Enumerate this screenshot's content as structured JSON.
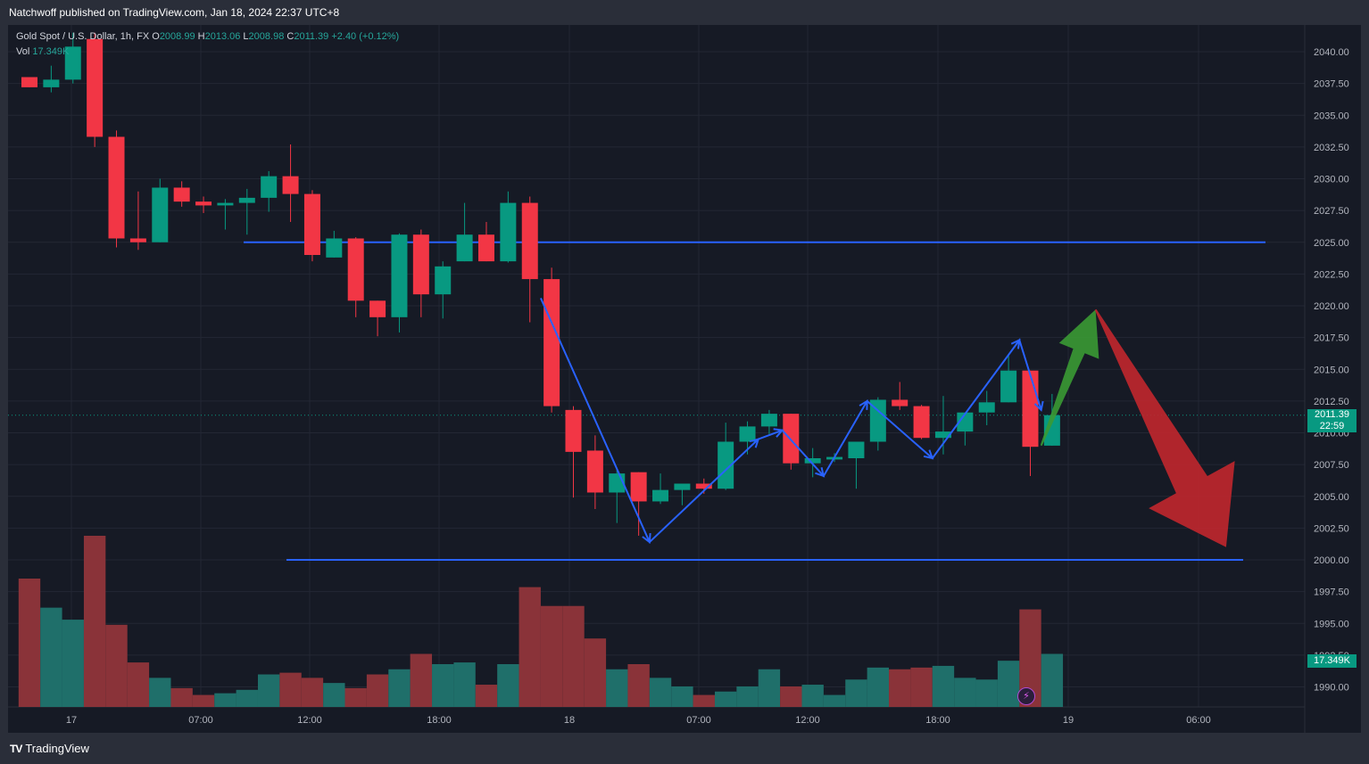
{
  "header": {
    "publisher": "Natchwoff published on TradingView.com, Jan 18, 2024 22:37 UTC+8"
  },
  "legend": {
    "symbol": "Gold Spot / U.S. Dollar, 1h, FX",
    "o_label": "O",
    "o_value": "2008.99",
    "h_label": "H",
    "h_value": "2013.06",
    "l_label": "L",
    "l_value": "2008.98",
    "c_label": "C",
    "c_value": "2011.39",
    "change": "+2.40 (+0.12%)",
    "vol_label": "Vol",
    "vol_value": "17.349K"
  },
  "price_tag": {
    "price": "2011.39",
    "countdown": "22:59"
  },
  "volume_tag": "17.349K",
  "footer": {
    "logo_mark": "TV",
    "logo_text": "TradingView"
  },
  "colors": {
    "up": "#089981",
    "down": "#f23645",
    "up_volume": "#1f6f6a",
    "down_volume": "#8a3339",
    "line": "#2962ff",
    "green_arrow": "#3a9a34",
    "red_arrow": "#c1272d"
  },
  "chart_data": {
    "type": "candlestick",
    "symbol": "Gold Spot / U.S. Dollar",
    "interval": "1h",
    "x_tick_labels": [
      "17",
      "07:00",
      "12:00",
      "18:00",
      "18",
      "07:00",
      "12:00",
      "18:00",
      "19",
      "06:00"
    ],
    "y_ticks": [
      "1990.00",
      "1992.50",
      "1995.00",
      "1997.50",
      "2000.00",
      "2002.50",
      "2005.00",
      "2007.50",
      "2010.00",
      "2012.50",
      "2015.00",
      "2017.50",
      "2020.00",
      "2022.50",
      "2025.00",
      "2027.50",
      "2030.00",
      "2032.50",
      "2035.00",
      "2037.50",
      "2040.00"
    ],
    "y_range": [
      1988.2,
      2041.5
    ],
    "grid": true,
    "candles": [
      {
        "o": 2038.0,
        "h": 2038.0,
        "l": 2037.2,
        "c": 2037.2,
        "v": 0.75
      },
      {
        "o": 2037.2,
        "h": 2038.9,
        "l": 2036.8,
        "c": 2037.8,
        "v": 0.58
      },
      {
        "o": 2037.8,
        "h": 2041.5,
        "l": 2037.5,
        "c": 2040.4,
        "v": 0.51
      },
      {
        "o": 2041.0,
        "h": 2041.5,
        "l": 2032.5,
        "c": 2033.3,
        "v": 1.0
      },
      {
        "o": 2033.3,
        "h": 2033.8,
        "l": 2024.6,
        "c": 2025.3,
        "v": 0.48
      },
      {
        "o": 2025.3,
        "h": 2029.0,
        "l": 2024.4,
        "c": 2025.0,
        "v": 0.26
      },
      {
        "o": 2025.0,
        "h": 2030.0,
        "l": 2025.0,
        "c": 2029.3,
        "v": 0.17
      },
      {
        "o": 2029.3,
        "h": 2029.8,
        "l": 2027.8,
        "c": 2028.2,
        "v": 0.11
      },
      {
        "o": 2028.2,
        "h": 2028.6,
        "l": 2027.3,
        "c": 2027.9,
        "v": 0.07
      },
      {
        "o": 2027.9,
        "h": 2028.4,
        "l": 2026.0,
        "c": 2028.1,
        "v": 0.08
      },
      {
        "o": 2028.1,
        "h": 2029.2,
        "l": 2025.6,
        "c": 2028.5,
        "v": 0.1
      },
      {
        "o": 2028.5,
        "h": 2030.6,
        "l": 2027.4,
        "c": 2030.2,
        "v": 0.19
      },
      {
        "o": 2030.2,
        "h": 2032.7,
        "l": 2026.6,
        "c": 2028.8,
        "v": 0.2
      },
      {
        "o": 2028.8,
        "h": 2029.1,
        "l": 2023.5,
        "c": 2024.0,
        "v": 0.17
      },
      {
        "o": 2023.8,
        "h": 2025.9,
        "l": 2023.8,
        "c": 2025.3,
        "v": 0.14
      },
      {
        "o": 2025.3,
        "h": 2025.4,
        "l": 2019.1,
        "c": 2020.4,
        "v": 0.11
      },
      {
        "o": 2020.4,
        "h": 2020.4,
        "l": 2017.6,
        "c": 2019.1,
        "v": 0.19
      },
      {
        "o": 2019.1,
        "h": 2025.7,
        "l": 2017.9,
        "c": 2025.6,
        "v": 0.22
      },
      {
        "o": 2025.6,
        "h": 2026.0,
        "l": 2019.1,
        "c": 2020.9,
        "v": 0.31
      },
      {
        "o": 2020.9,
        "h": 2023.5,
        "l": 2019.0,
        "c": 2023.1,
        "v": 0.25
      },
      {
        "o": 2023.5,
        "h": 2028.1,
        "l": 2023.5,
        "c": 2025.6,
        "v": 0.26
      },
      {
        "o": 2025.6,
        "h": 2026.6,
        "l": 2023.5,
        "c": 2023.5,
        "v": 0.13
      },
      {
        "o": 2023.5,
        "h": 2029.0,
        "l": 2023.4,
        "c": 2028.1,
        "v": 0.25
      },
      {
        "o": 2028.1,
        "h": 2028.6,
        "l": 2018.7,
        "c": 2022.1,
        "v": 0.7
      },
      {
        "o": 2022.1,
        "h": 2023.0,
        "l": 2011.6,
        "c": 2012.1,
        "v": 0.59
      },
      {
        "o": 2011.8,
        "h": 2012.1,
        "l": 2004.9,
        "c": 2008.5,
        "v": 0.59
      },
      {
        "o": 2008.6,
        "h": 2009.8,
        "l": 2004.0,
        "c": 2005.3,
        "v": 0.4
      },
      {
        "o": 2005.3,
        "h": 2007.1,
        "l": 2002.9,
        "c": 2006.8,
        "v": 0.22
      },
      {
        "o": 2006.9,
        "h": 2006.9,
        "l": 2001.9,
        "c": 2004.6,
        "v": 0.25
      },
      {
        "o": 2004.6,
        "h": 2006.8,
        "l": 2004.4,
        "c": 2005.5,
        "v": 0.17
      },
      {
        "o": 2005.5,
        "h": 2006.0,
        "l": 2004.3,
        "c": 2006.0,
        "v": 0.12
      },
      {
        "o": 2006.0,
        "h": 2006.4,
        "l": 2005.2,
        "c": 2005.6,
        "v": 0.07
      },
      {
        "o": 2005.6,
        "h": 2010.8,
        "l": 2005.5,
        "c": 2009.3,
        "v": 0.09
      },
      {
        "o": 2009.3,
        "h": 2010.9,
        "l": 2008.3,
        "c": 2010.5,
        "v": 0.12
      },
      {
        "o": 2010.5,
        "h": 2011.8,
        "l": 2009.9,
        "c": 2011.5,
        "v": 0.22
      },
      {
        "o": 2011.5,
        "h": 2011.5,
        "l": 2007.1,
        "c": 2007.6,
        "v": 0.12
      },
      {
        "o": 2007.6,
        "h": 2008.8,
        "l": 2006.5,
        "c": 2008.0,
        "v": 0.13
      },
      {
        "o": 2007.9,
        "h": 2008.4,
        "l": 2007.7,
        "c": 2008.1,
        "v": 0.07
      },
      {
        "o": 2008.0,
        "h": 2009.2,
        "l": 2005.6,
        "c": 2009.3,
        "v": 0.16
      },
      {
        "o": 2009.3,
        "h": 2012.8,
        "l": 2008.6,
        "c": 2012.6,
        "v": 0.23
      },
      {
        "o": 2012.6,
        "h": 2014.0,
        "l": 2011.8,
        "c": 2012.1,
        "v": 0.22
      },
      {
        "o": 2012.1,
        "h": 2012.2,
        "l": 2009.5,
        "c": 2009.6,
        "v": 0.23
      },
      {
        "o": 2009.6,
        "h": 2012.9,
        "l": 2008.3,
        "c": 2010.1,
        "v": 0.24
      },
      {
        "o": 2010.1,
        "h": 2011.5,
        "l": 2009.0,
        "c": 2011.6,
        "v": 0.17
      },
      {
        "o": 2011.6,
        "h": 2013.3,
        "l": 2010.6,
        "c": 2012.4,
        "v": 0.16
      },
      {
        "o": 2012.4,
        "h": 2016.2,
        "l": 2012.4,
        "c": 2014.9,
        "v": 0.27
      },
      {
        "o": 2014.9,
        "h": 2014.9,
        "l": 2006.6,
        "c": 2008.9,
        "v": 0.57
      },
      {
        "o": 2008.99,
        "h": 2013.06,
        "l": 2008.98,
        "c": 2011.39,
        "v": 0.31
      }
    ],
    "horizontal_lines": [
      2025.0,
      2000.0
    ],
    "zigzag": [
      [
        23.5,
        2020.6
      ],
      [
        28.5,
        2001.4
      ],
      [
        33.5,
        2009.5
      ],
      [
        34.6,
        2010.2
      ],
      [
        36.5,
        2006.6
      ],
      [
        38.5,
        2012.5
      ],
      [
        41.5,
        2008.0
      ],
      [
        45.5,
        2017.3
      ],
      [
        46.5,
        2011.8
      ]
    ],
    "arrows": [
      {
        "direction": "up",
        "from": [
          46.5,
          2009.0
        ],
        "to": [
          49.0,
          2019.7
        ]
      },
      {
        "direction": "down",
        "from": [
          49.0,
          2019.7
        ],
        "to": [
          55.0,
          2001.0
        ]
      }
    ]
  }
}
